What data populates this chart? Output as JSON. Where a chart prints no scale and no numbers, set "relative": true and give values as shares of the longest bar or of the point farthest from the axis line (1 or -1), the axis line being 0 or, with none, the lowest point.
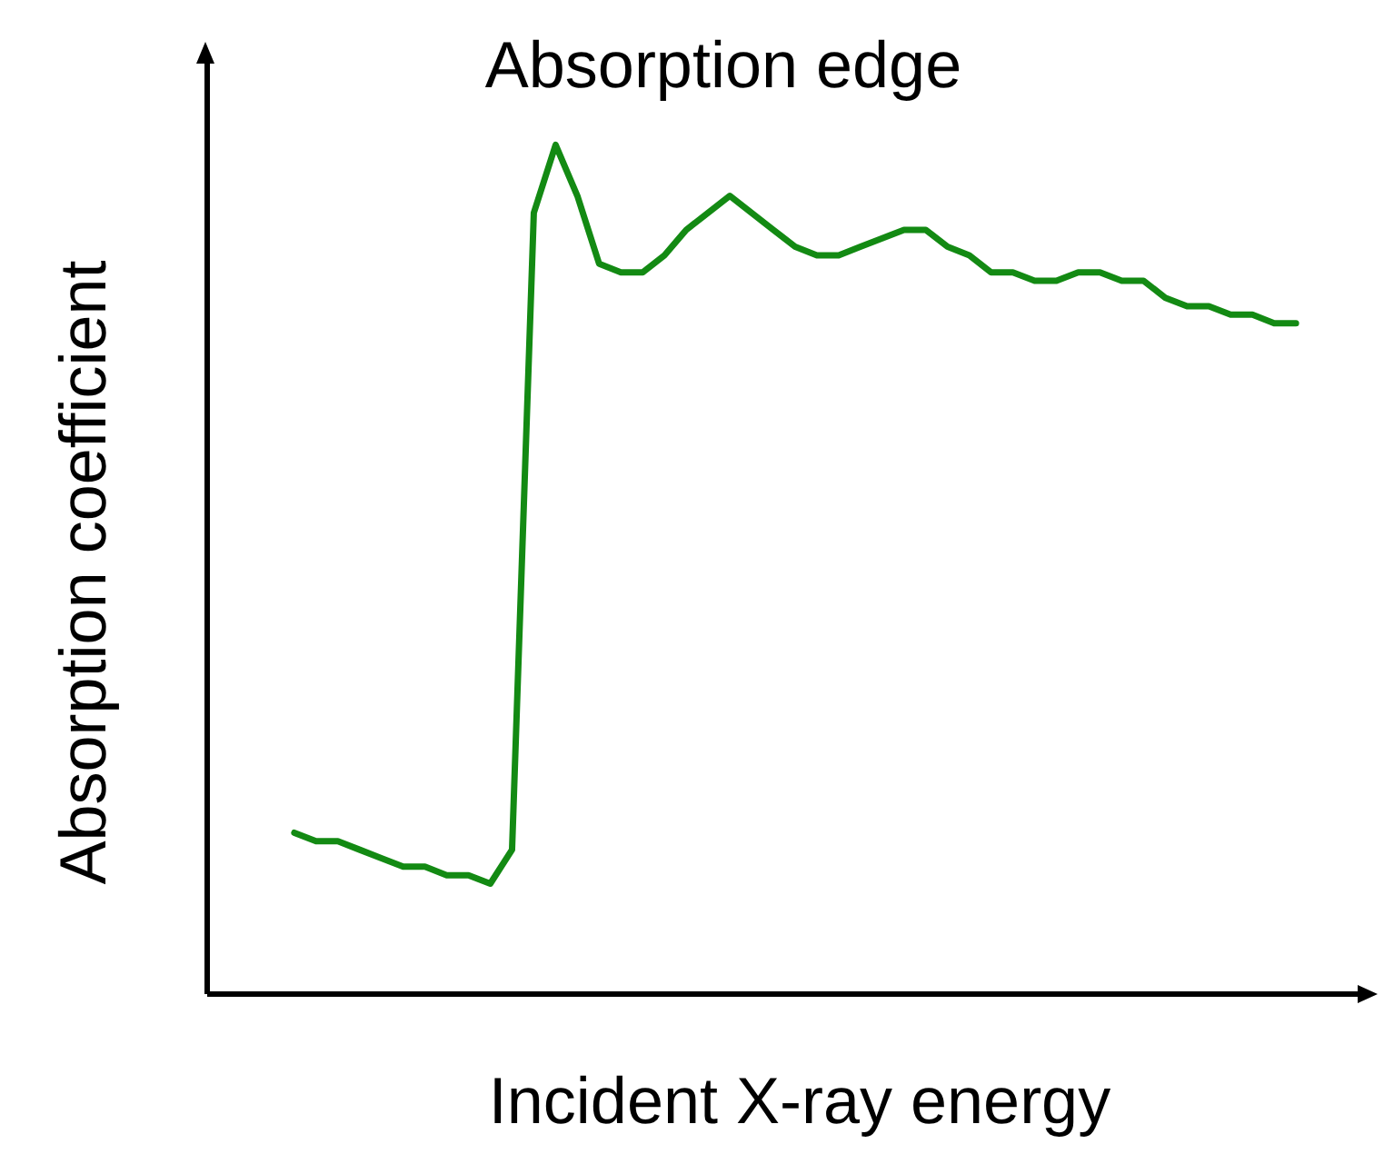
{
  "chart_data": {
    "type": "line",
    "title": "Absorption edge",
    "xlabel": "Incident X-ray energy",
    "ylabel": "Absorption coefficient",
    "relative": true,
    "grid": false,
    "legend": false,
    "marker": "none",
    "line_style": "solid",
    "categories": [
      null,
      null,
      null,
      null,
      null,
      null,
      null,
      null,
      null,
      null,
      null,
      null,
      null,
      null,
      null,
      null,
      null,
      null,
      null,
      null,
      null,
      null,
      null,
      null,
      null,
      null,
      null,
      null,
      null,
      null,
      null,
      null,
      null,
      null,
      null,
      null,
      null,
      null,
      null,
      null,
      null,
      null,
      null,
      null,
      null,
      null,
      null,
      null,
      null,
      null,
      null,
      null,
      null,
      null
    ],
    "series": [
      {
        "color": "#138a13",
        "values": [
          null,
          null,
          null,
          null,
          0.19,
          0.18,
          0.18,
          0.17,
          0.16,
          0.15,
          0.15,
          0.14,
          0.14,
          0.13,
          0.17,
          0.92,
          1,
          0.94,
          0.86,
          0.85,
          0.85,
          0.87,
          0.9,
          0.92,
          0.94,
          0.92,
          0.9,
          0.88,
          0.87,
          0.87,
          0.88,
          0.89,
          0.9,
          0.9,
          0.88,
          0.87,
          0.85,
          0.85,
          0.84,
          0.84,
          0.85,
          0.85,
          0.84,
          0.84,
          0.82,
          0.81,
          0.81,
          0.8,
          0.8,
          0.79,
          0.79,
          null,
          null,
          null
        ]
      }
    ]
  }
}
